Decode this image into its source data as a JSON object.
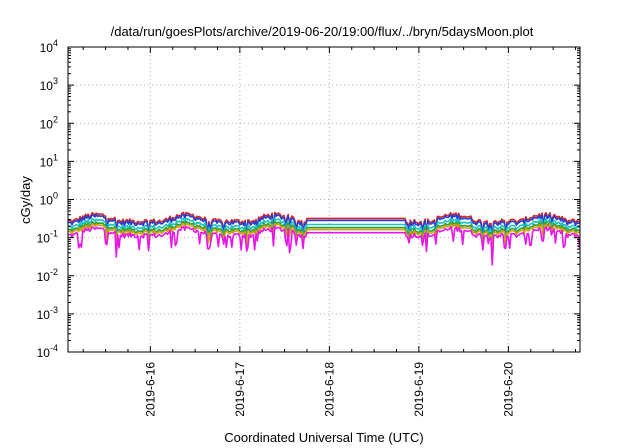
{
  "chart_data": {
    "type": "line",
    "title": "/data/run/goesPlots/archive/2019-06-20/19:00/flux/../bryn/5daysMoon.plot",
    "xlabel": "Coordinated Universal Time (UTC)",
    "ylabel": "cGy/day",
    "yscale": "log",
    "ylim": [
      0.0001,
      10000
    ],
    "y_ticks": [
      {
        "base": "10",
        "exp": "-4"
      },
      {
        "base": "10",
        "exp": "-3"
      },
      {
        "base": "10",
        "exp": "-2"
      },
      {
        "base": "10",
        "exp": "-1"
      },
      {
        "base": "10",
        "exp": "0"
      },
      {
        "base": "10",
        "exp": "1"
      },
      {
        "base": "10",
        "exp": "2"
      },
      {
        "base": "10",
        "exp": "3"
      },
      {
        "base": "10",
        "exp": "4"
      }
    ],
    "x_ticks": [
      "2019-6-16",
      "2019-6-17",
      "2019-6-18",
      "2019-6-19",
      "2019-6-20"
    ],
    "xlim_days": [
      15.08,
      20.8
    ],
    "grid": true,
    "gap": {
      "start": 17.75,
      "end": 18.85
    },
    "series": [
      {
        "color": "#d62728",
        "offset": 1.18
      },
      {
        "color": "#2140d8",
        "offset": 1.05
      },
      {
        "color": "#19c3c8",
        "offset": 0.82
      },
      {
        "color": "#2ca02c",
        "offset": 0.68
      },
      {
        "color": "#d4a017",
        "offset": 0.6
      },
      {
        "color": "#e815e8",
        "offset": 0.5
      }
    ]
  }
}
